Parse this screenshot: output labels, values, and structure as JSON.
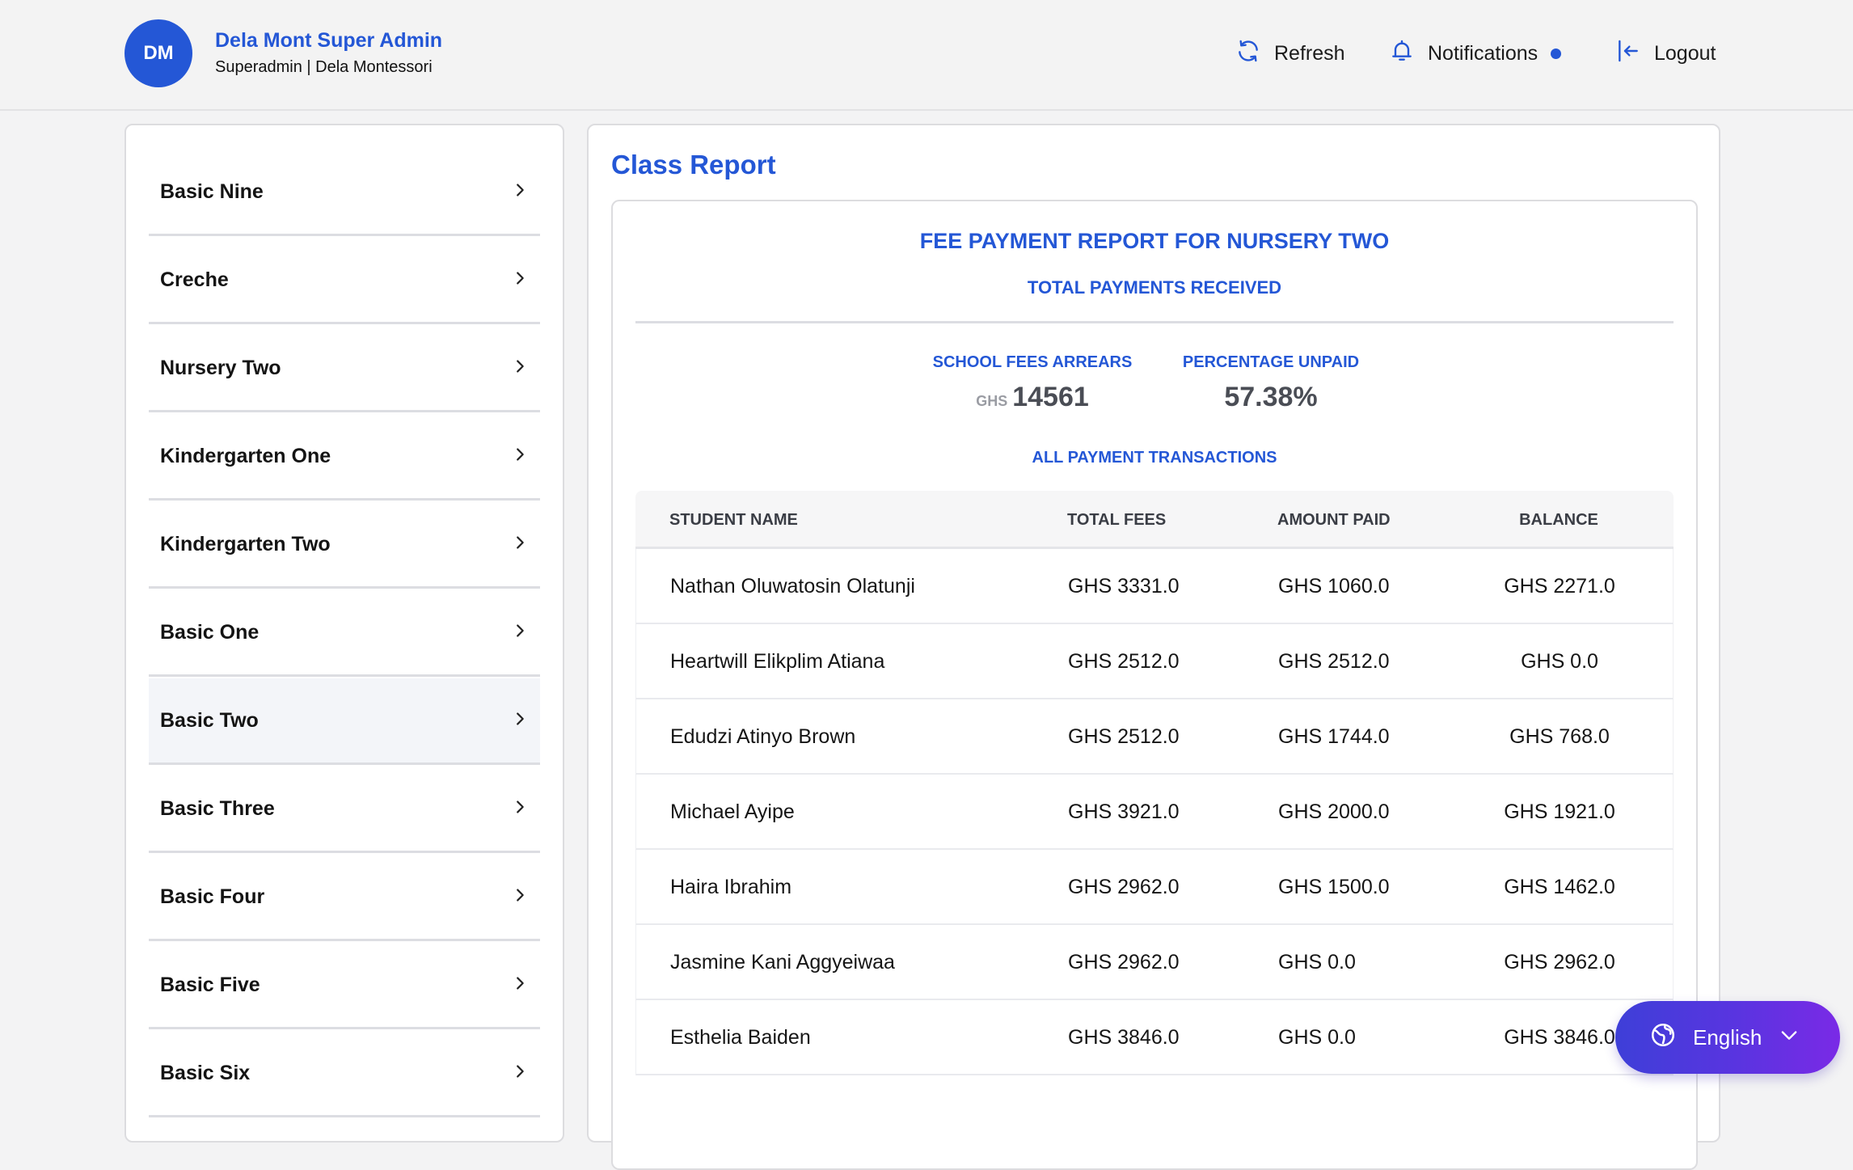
{
  "header": {
    "avatar_initials": "DM",
    "user_name": "Dela Mont Super Admin",
    "user_role": "Superadmin | Dela Montessori",
    "refresh_label": "Refresh",
    "notifications_label": "Notifications",
    "logout_label": "Logout"
  },
  "sidebar": {
    "items": [
      {
        "label": "Basic Nine"
      },
      {
        "label": "Creche"
      },
      {
        "label": "Nursery Two"
      },
      {
        "label": "Kindergarten One"
      },
      {
        "label": "Kindergarten Two"
      },
      {
        "label": "Basic One"
      },
      {
        "label": "Basic Two"
      },
      {
        "label": "Basic Three"
      },
      {
        "label": "Basic Four"
      },
      {
        "label": "Basic Five"
      },
      {
        "label": "Basic Six"
      }
    ],
    "active_item": "Basic Two"
  },
  "main": {
    "title": "Class Report",
    "report_title": "FEE PAYMENT REPORT FOR NURSERY TWO",
    "report_subtitle": "TOTAL PAYMENTS RECEIVED",
    "arrears": {
      "label": "SCHOOL FEES ARREARS",
      "currency": "GHS",
      "value": "14561"
    },
    "unpaid": {
      "label": "PERCENTAGE UNPAID",
      "value": "57.38%"
    },
    "transactions_label": "ALL PAYMENT TRANSACTIONS",
    "table": {
      "headers": {
        "name": "STUDENT NAME",
        "total": "TOTAL FEES",
        "paid": "AMOUNT PAID",
        "balance": "BALANCE"
      },
      "rows": [
        {
          "name": "Nathan Oluwatosin Olatunji",
          "total": "GHS 3331.0",
          "paid": "GHS 1060.0",
          "balance": "GHS 2271.0"
        },
        {
          "name": "Heartwill Elikplim Atiana",
          "total": "GHS 2512.0",
          "paid": "GHS 2512.0",
          "balance": "GHS 0.0"
        },
        {
          "name": "Edudzi Atinyo Brown",
          "total": "GHS 2512.0",
          "paid": "GHS 1744.0",
          "balance": "GHS 768.0"
        },
        {
          "name": "Michael Ayipe",
          "total": "GHS 3921.0",
          "paid": "GHS 2000.0",
          "balance": "GHS 1921.0"
        },
        {
          "name": "Haira Ibrahim",
          "total": "GHS 2962.0",
          "paid": "GHS 1500.0",
          "balance": "GHS 1462.0"
        },
        {
          "name": "Jasmine Kani Aggyeiwaa",
          "total": "GHS 2962.0",
          "paid": "GHS 0.0",
          "balance": "GHS 2962.0"
        },
        {
          "name": "Esthelia Baiden",
          "total": "GHS 3846.0",
          "paid": "GHS 0.0",
          "balance": "GHS 3846.0"
        }
      ]
    }
  },
  "language": {
    "selected": "English"
  },
  "colors": {
    "accent": "#2457d6",
    "lang_gradient_start": "#3e3fd8",
    "lang_gradient_end": "#7a2ae6"
  }
}
